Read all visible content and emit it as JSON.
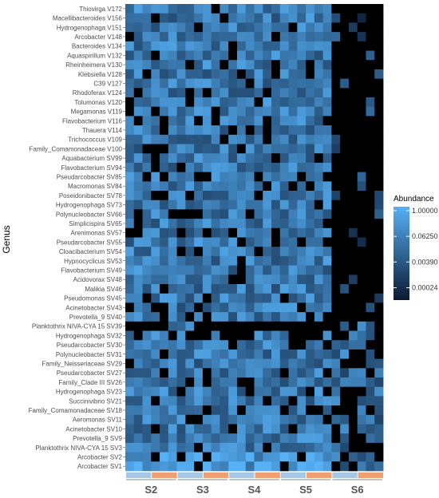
{
  "chart_data": {
    "type": "heatmap",
    "ylabel": "Genus",
    "rows": [
      "Thiovirga V172",
      "Macellibacteroides V156",
      "Hydrogenophaga V151",
      "Arcobacter V148",
      "Bacteroides V134",
      "Aquaspirillum V132",
      "Rheinheimera V130",
      "Klebsiella V128",
      "C39 V127",
      "Rhodoferax V124",
      "Tolumonas V120",
      "Megamonas V119",
      "Flavobacterium V116",
      "Thauera V114",
      "Trichococcus V109",
      "Family_Comamonadaceae V100",
      "Aquabacterium SV99",
      "Flavobacterium SV94",
      "Pseudarcobacter SV85",
      "Macromonas SV84",
      "Poseidonibacter SV78",
      "Hydrogenophaga SV73",
      "Polynucleobacter SV66",
      "Simplicispira SV65",
      "Arenimonas SV57",
      "Pseudarcobacter SV55",
      "Cloacibacterium SV54",
      "Hypnocyclicus SV53",
      "Flavobacterium SV49",
      "Acidovorax SV48",
      "Malikia SV46",
      "Pseudomonas SV45",
      "Acinetobacter SV43",
      "Prevotella_9 SV40",
      "Planktothrix NIVA-CYA 15 SV39",
      "Hydrogenophaga SV32",
      "Pseudarcobacter SV30",
      "Polynucleobacter SV31",
      "Family_Neisseriaceae SV29",
      "Pseudarcobacter SV27",
      "Family_Clade III SV26",
      "Hydrogenophaga SV23",
      "Succinivibrio SV21",
      "Family_Comamonadaceae SV18",
      "Aeromonas SV11",
      "Acinetobacter SV10",
      "Prevotella_9 SV9",
      "Planktothrix NIVA-CYA 15 SV3",
      "Arcobacter SV2",
      "Arcobacter SV1"
    ],
    "groups": [
      "S2",
      "S3",
      "S4",
      "S5",
      "S6"
    ],
    "samples_per_group": [
      6,
      6,
      6,
      6,
      6
    ],
    "subgroup_colors": [
      "#a6c8e4",
      "#f0a070"
    ],
    "color_scale": {
      "title": "Abundance",
      "scale": "log",
      "low_color": "#0b1a33",
      "high_color": "#56b1f7",
      "zero_color": "#000000",
      "breaks": [
        1.0,
        0.0625,
        0.0039,
        0.00024
      ],
      "break_labels": [
        "1.00000",
        "0.06250",
        "0.00390",
        "0.00024"
      ]
    },
    "legend_position": "right"
  }
}
